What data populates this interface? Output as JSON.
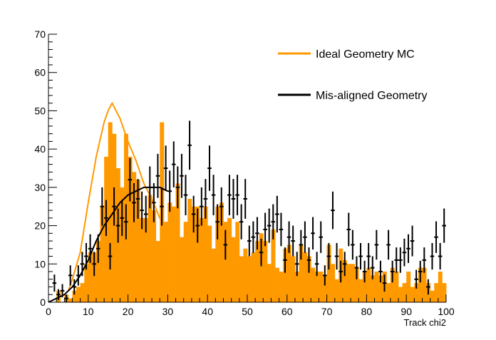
{
  "chart_data": {
    "type": "bar",
    "title": "",
    "xlabel": "Track chi2",
    "ylabel": "",
    "xlim": [
      0,
      100
    ],
    "ylim": [
      0,
      70
    ],
    "x_ticks": [
      0,
      10,
      20,
      30,
      40,
      50,
      60,
      70,
      80,
      90,
      100
    ],
    "y_ticks": [
      0,
      10,
      20,
      30,
      40,
      50,
      60,
      70
    ],
    "grid": false,
    "legend_position": "top-right",
    "bin_width": 1,
    "series": [
      {
        "name": "Ideal Geometry MC",
        "kind": "histogram",
        "color": "#ff9900",
        "bin_edges_start": 0,
        "values": [
          0,
          0,
          3,
          0,
          2,
          1,
          3,
          4,
          5,
          10,
          13,
          13,
          16,
          25,
          38,
          47,
          44,
          35,
          30,
          44,
          38,
          34,
          32,
          22,
          22,
          28,
          24,
          16,
          47,
          21,
          26,
          25,
          31,
          17,
          21,
          27,
          25,
          25,
          22,
          25,
          20,
          14,
          25,
          26,
          21,
          22,
          17,
          21,
          12,
          14,
          12,
          13,
          16,
          18,
          16,
          10,
          19,
          9,
          8,
          14,
          15,
          12,
          8,
          15,
          13,
          12,
          9,
          8,
          8,
          7,
          15,
          10,
          6,
          14,
          11,
          10,
          10,
          9,
          6,
          8,
          9,
          7,
          8,
          7,
          8,
          5,
          9,
          8,
          4,
          5,
          8,
          4,
          5,
          9,
          9,
          5,
          3,
          5,
          8,
          5
        ]
      },
      {
        "name": "Mis-aligned Geometry",
        "kind": "points",
        "color": "#000000",
        "x": [
          1.5,
          2.5,
          3.5,
          4.5,
          5.5,
          6.5,
          7.5,
          8.5,
          9.5,
          10.5,
          11.5,
          12.5,
          13.5,
          14.5,
          15.5,
          16.5,
          17.5,
          18.5,
          19.5,
          20.5,
          21.5,
          22.5,
          23.5,
          24.5,
          25.5,
          26.5,
          27.5,
          28.5,
          29.5,
          30.5,
          31.5,
          32.5,
          33.5,
          34.5,
          35.5,
          36.5,
          37.5,
          38.5,
          39.5,
          40.5,
          41.5,
          42.5,
          43.5,
          44.5,
          45.5,
          46.5,
          47.5,
          48.5,
          49.5,
          50.5,
          51.5,
          52.5,
          53.5,
          54.5,
          55.5,
          56.5,
          57.5,
          58.5,
          59.5,
          60.5,
          61.5,
          62.5,
          63.5,
          64.5,
          65.5,
          66.5,
          67.5,
          68.5,
          69.5,
          70.5,
          71.5,
          72.5,
          73.5,
          74.5,
          75.5,
          76.5,
          77.5,
          78.5,
          79.5,
          80.5,
          81.5,
          82.5,
          83.5,
          84.5,
          85.5,
          86.5,
          87.5,
          88.5,
          89.5,
          90.5,
          91.5,
          92.5,
          93.5,
          94.5,
          95.5,
          96.5,
          97.5,
          98.5,
          99.5
        ],
        "values": [
          5,
          2,
          3,
          1,
          7,
          4,
          7,
          10,
          12,
          14,
          10,
          14,
          25,
          22,
          12,
          25,
          20,
          22,
          21,
          32,
          26,
          27,
          24,
          23,
          30,
          26,
          33,
          25,
          35,
          29,
          36,
          30,
          33,
          28,
          41,
          23,
          20,
          25,
          27,
          35,
          28,
          21,
          25,
          15,
          28,
          27,
          28,
          21,
          27,
          16,
          17,
          18,
          13,
          19,
          20,
          21,
          23,
          19,
          11,
          17,
          16,
          10,
          15,
          17,
          11,
          18,
          10,
          17,
          7,
          12,
          24,
          12,
          8,
          10,
          19,
          15,
          9,
          12,
          8,
          12,
          9,
          15,
          8,
          5,
          15,
          8,
          11,
          11,
          13,
          14,
          16,
          6,
          8,
          11,
          4,
          12,
          17,
          12,
          20
        ]
      },
      {
        "name": "",
        "kind": "fit",
        "color": "#ff9900",
        "x": [
          5,
          6,
          8,
          10,
          12,
          14,
          15,
          16,
          18,
          20,
          22,
          24,
          26,
          28,
          30,
          32
        ],
        "values": [
          3,
          6,
          13,
          26,
          38,
          47,
          50,
          52,
          48,
          42,
          37,
          31,
          27,
          22,
          18,
          15
        ]
      },
      {
        "name": "",
        "kind": "fit",
        "color": "#000000",
        "x": [
          0,
          2,
          4,
          6,
          8,
          10,
          12,
          14,
          16,
          18,
          20,
          22,
          24,
          26,
          28,
          30
        ],
        "values": [
          0,
          1,
          2,
          4,
          7,
          11,
          16,
          20,
          23,
          26,
          28,
          29,
          30,
          30,
          30,
          29
        ]
      }
    ]
  }
}
